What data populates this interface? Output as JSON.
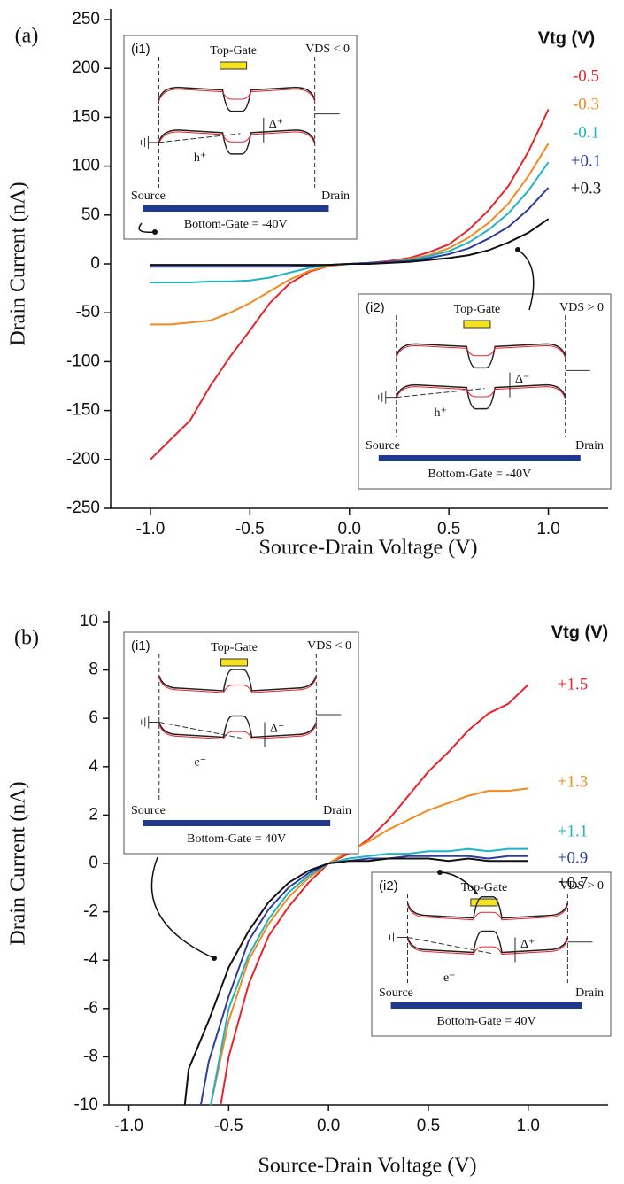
{
  "chart_data": [
    {
      "type": "line",
      "panel_label": "(a)",
      "xlabel": "Source-Drain Voltage (V)",
      "ylabel": "Drain Current (nA)",
      "legend_title": "Vtg (V)",
      "x": [
        -1.0,
        -0.9,
        -0.8,
        -0.7,
        -0.6,
        -0.5,
        -0.4,
        -0.3,
        -0.2,
        -0.1,
        0.0,
        0.1,
        0.2,
        0.3,
        0.4,
        0.5,
        0.6,
        0.7,
        0.8,
        0.9,
        1.0
      ],
      "series": [
        {
          "name": "-0.5",
          "color": "#e8232a",
          "values": [
            -200,
            -180,
            -160,
            -125,
            -95,
            -68,
            -40,
            -20,
            -8,
            -2,
            0,
            1,
            3,
            6,
            12,
            20,
            35,
            55,
            80,
            115,
            158
          ]
        },
        {
          "name": "-0.3",
          "color": "#f28a1e",
          "values": [
            -62,
            -62,
            -60,
            -58,
            -50,
            -40,
            -28,
            -16,
            -7,
            -2,
            0,
            1,
            2,
            5,
            9,
            16,
            27,
            42,
            62,
            90,
            123
          ]
        },
        {
          "name": "-0.1",
          "color": "#1fb3c4",
          "values": [
            -19,
            -19,
            -19,
            -18,
            -18,
            -17,
            -14,
            -9,
            -4,
            -1,
            0,
            1,
            2,
            4,
            8,
            13,
            22,
            35,
            52,
            75,
            104
          ]
        },
        {
          "name": "+0.1",
          "color": "#2e3d9a",
          "values": [
            -3,
            -3,
            -3,
            -3,
            -3,
            -3,
            -3,
            -3,
            -2,
            -1,
            0,
            1,
            2,
            3,
            6,
            10,
            16,
            26,
            38,
            56,
            78
          ]
        },
        {
          "name": "+0.3",
          "color": "#111111",
          "values": [
            -1,
            -1,
            -1,
            -1,
            -1,
            -1,
            -1,
            -1,
            -1,
            -1,
            0,
            0,
            1,
            2,
            4,
            6,
            9,
            14,
            22,
            32,
            46
          ]
        }
      ],
      "xlim": [
        -1.2,
        1.3
      ],
      "ylim": [
        -250,
        250
      ],
      "xticks": [
        {
          "value": -1.0,
          "label": "-1.0"
        },
        {
          "value": -0.5,
          "label": "-0.5"
        },
        {
          "value": 0.0,
          "label": "0.0"
        },
        {
          "value": 0.5,
          "label": "0.5"
        },
        {
          "value": 1.0,
          "label": "1.0"
        }
      ],
      "yticks": [
        -250,
        -200,
        -150,
        -100,
        -50,
        0,
        50,
        100,
        150,
        200,
        250
      ],
      "insets": [
        {
          "label": "(i1)",
          "top_gate": "Top-Gate",
          "condition": "VDS < 0",
          "source": "Source",
          "drain": "Drain",
          "carrier": "h⁺",
          "delta": "Δ⁺",
          "bottom_gate": "Bottom-Gate = -40V"
        },
        {
          "label": "(i2)",
          "top_gate": "Top-Gate",
          "condition": "VDS > 0",
          "source": "Source",
          "drain": "Drain",
          "carrier": "h⁺",
          "delta": "Δ⁻",
          "bottom_gate": "Bottom-Gate = -40V"
        }
      ]
    },
    {
      "type": "line",
      "panel_label": "(b)",
      "xlabel": "Source-Drain Voltage (V)",
      "ylabel": "Drain Current (nA)",
      "legend_title": "Vtg (V)",
      "series": [
        {
          "name": "+1.5",
          "color": "#e8232a",
          "x": [
            -0.54,
            -0.5,
            -0.4,
            -0.3,
            -0.2,
            -0.1,
            0.0,
            0.1,
            0.2,
            0.3,
            0.4,
            0.5,
            0.6,
            0.7,
            0.8,
            0.9,
            1.0
          ],
          "values": [
            -10,
            -8,
            -5,
            -3,
            -1.8,
            -0.8,
            0,
            0.4,
            1.0,
            1.8,
            2.8,
            3.8,
            4.6,
            5.5,
            6.2,
            6.6,
            7.4
          ]
        },
        {
          "name": "+1.3",
          "color": "#f28a1e",
          "x": [
            -0.59,
            -0.5,
            -0.4,
            -0.3,
            -0.2,
            -0.1,
            0.0,
            0.1,
            0.2,
            0.3,
            0.4,
            0.5,
            0.6,
            0.7,
            0.8,
            0.9,
            1.0
          ],
          "values": [
            -10,
            -6.5,
            -4,
            -2.5,
            -1.4,
            -0.6,
            0,
            0.5,
            0.9,
            1.4,
            1.8,
            2.2,
            2.5,
            2.8,
            3.0,
            3.0,
            3.1
          ]
        },
        {
          "name": "+1.1",
          "color": "#1fb3c4",
          "x": [
            -0.59,
            -0.5,
            -0.4,
            -0.3,
            -0.2,
            -0.1,
            0.0,
            0.1,
            0.2,
            0.3,
            0.4,
            0.5,
            0.6,
            0.7,
            0.8,
            0.9,
            1.0
          ],
          "values": [
            -10,
            -6,
            -3.8,
            -2.3,
            -1.2,
            -0.5,
            0,
            0.2,
            0.3,
            0.4,
            0.4,
            0.5,
            0.5,
            0.6,
            0.5,
            0.6,
            0.6
          ]
        },
        {
          "name": "+0.9",
          "color": "#2e3d9a",
          "x": [
            -0.64,
            -0.6,
            -0.5,
            -0.4,
            -0.3,
            -0.2,
            -0.1,
            0.0,
            0.1,
            0.2,
            0.3,
            0.4,
            0.5,
            0.6,
            0.7,
            0.8,
            0.9,
            1.0
          ],
          "values": [
            -10,
            -8.2,
            -5.5,
            -3.2,
            -1.9,
            -1.0,
            -0.4,
            0,
            0.1,
            0.2,
            0.2,
            0.3,
            0.3,
            0.3,
            0.3,
            0.2,
            0.3,
            0.3
          ]
        },
        {
          "name": "+0.7",
          "color": "#111111",
          "x": [
            -0.72,
            -0.7,
            -0.6,
            -0.5,
            -0.4,
            -0.3,
            -0.2,
            -0.1,
            0.0,
            0.1,
            0.2,
            0.3,
            0.4,
            0.5,
            0.6,
            0.7,
            0.8,
            0.9,
            1.0
          ],
          "values": [
            -10,
            -8.5,
            -6.5,
            -4.3,
            -2.8,
            -1.6,
            -0.8,
            -0.3,
            0,
            0.1,
            0.1,
            0.2,
            0.2,
            0.2,
            0.1,
            0.2,
            0.1,
            0.1,
            0.1
          ]
        }
      ],
      "xlim": [
        -1.1,
        1.4
      ],
      "ylim": [
        -10,
        10
      ],
      "xticks": [
        {
          "value": -1.0,
          "label": "-1.0"
        },
        {
          "value": -0.5,
          "label": "-0.5"
        },
        {
          "value": 0.0,
          "label": "0.0"
        },
        {
          "value": 0.5,
          "label": "0.5"
        },
        {
          "value": 1.0,
          "label": "1.0"
        }
      ],
      "yticks": [
        -10,
        -8,
        -6,
        -4,
        -2,
        0,
        2,
        4,
        6,
        8,
        10
      ],
      "insets": [
        {
          "label": "(i1)",
          "top_gate": "Top-Gate",
          "condition": "VDS < 0",
          "source": "Source",
          "drain": "Drain",
          "carrier": "e⁻",
          "delta": "Δ⁻",
          "bottom_gate": "Bottom-Gate = 40V"
        },
        {
          "label": "(i2)",
          "top_gate": "Top-Gate",
          "condition": "VDS > 0",
          "source": "Source",
          "drain": "Drain",
          "carrier": "e⁻",
          "delta": "Δ⁺",
          "bottom_gate": "Bottom-Gate = 40V"
        }
      ]
    }
  ]
}
